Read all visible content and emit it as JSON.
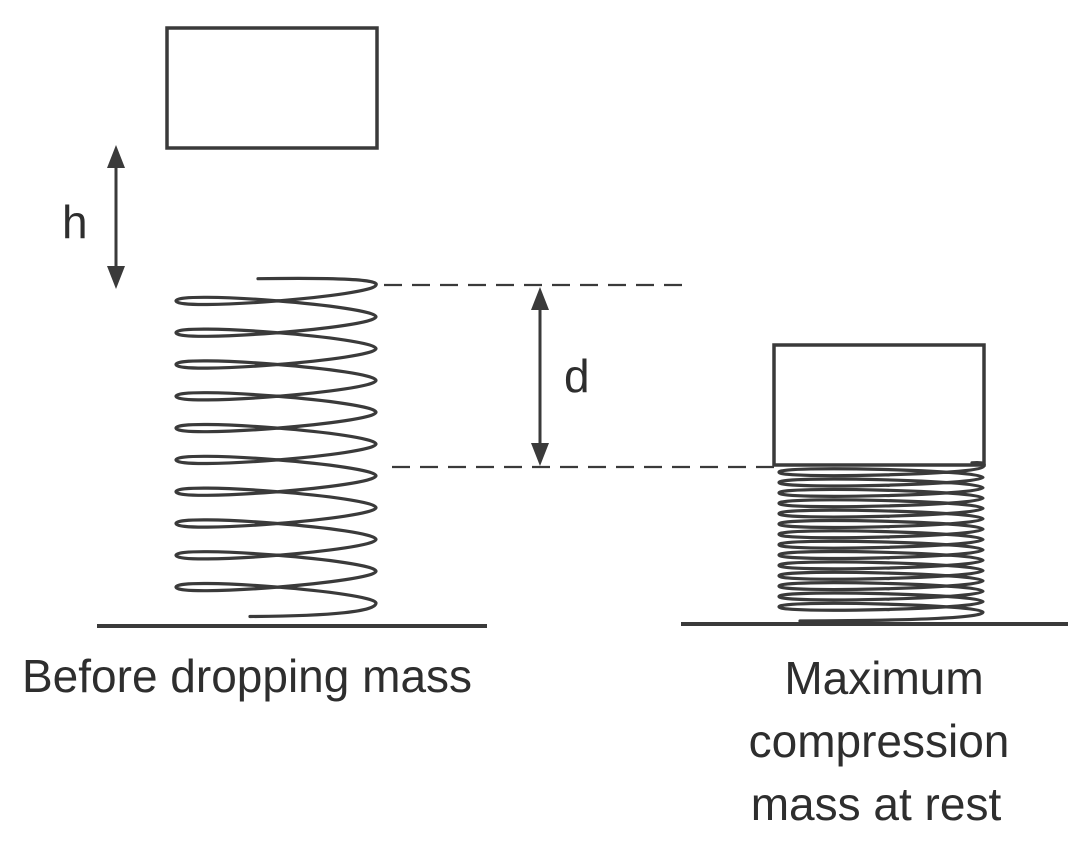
{
  "labels": {
    "height": "h",
    "compression": "d"
  },
  "captions": {
    "left": "Before dropping mass",
    "right_line1": "Maximum",
    "right_line2": "compression",
    "right_line3": "mass at rest"
  },
  "springs": {
    "before": {
      "coils": 10
    },
    "compressed": {
      "coils": 14
    }
  },
  "colors": {
    "ink": "#3a3a3a",
    "background": "#ffffff"
  }
}
